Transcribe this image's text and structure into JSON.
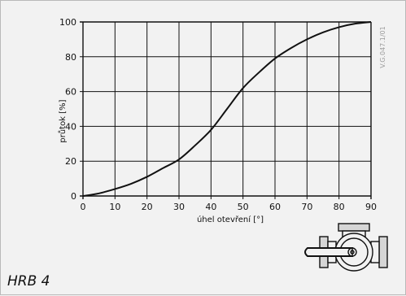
{
  "model_label": "HRB 4",
  "drawing_code": "V.G.047.1/01",
  "chart_data": {
    "type": "line",
    "xlabel": "úhel otevření [°]",
    "ylabel": "průtok [%]",
    "xlim": [
      0,
      90
    ],
    "ylim": [
      0,
      100
    ],
    "x_ticks": [
      0,
      10,
      20,
      30,
      40,
      50,
      60,
      70,
      80,
      90
    ],
    "y_ticks": [
      0,
      20,
      40,
      60,
      80,
      100
    ],
    "grid": true,
    "series": [
      {
        "x": [
          0,
          5,
          10,
          15,
          20,
          25,
          30,
          35,
          40,
          45,
          50,
          55,
          60,
          65,
          70,
          75,
          80,
          85,
          90
        ],
        "y": [
          0,
          1.5,
          4,
          7,
          11,
          16,
          21,
          29,
          38,
          50,
          62,
          71,
          79,
          85,
          90,
          94,
          97,
          99,
          100
        ]
      }
    ]
  }
}
